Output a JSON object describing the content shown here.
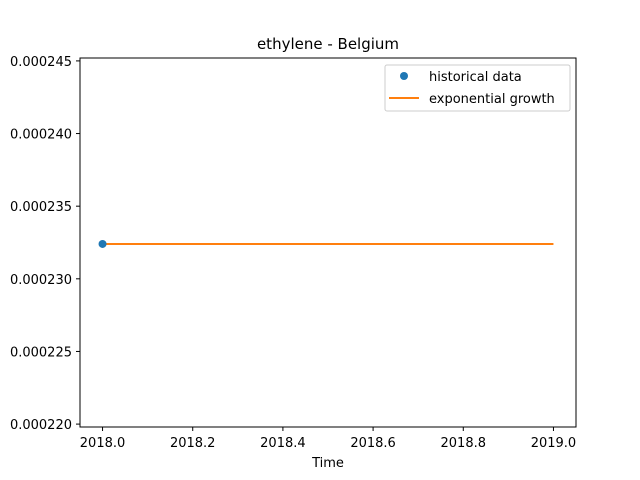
{
  "chart_data": {
    "type": "line",
    "title": "ethylene - Belgium",
    "xlabel": "Time",
    "ylabel": "",
    "xlim": [
      2017.95,
      2019.05
    ],
    "ylim": [
      0.0002198,
      0.0002452
    ],
    "x_ticks": [
      2018.0,
      2018.2,
      2018.4,
      2018.6,
      2018.8,
      2019.0
    ],
    "x_tick_labels": [
      "2018.0",
      "2018.2",
      "2018.4",
      "2018.6",
      "2018.8",
      "2019.0"
    ],
    "y_ticks": [
      0.00022,
      0.000225,
      0.00023,
      0.000235,
      0.00024,
      0.000245
    ],
    "y_tick_labels": [
      "0.000220",
      "0.000225",
      "0.000230",
      "0.000235",
      "0.000240",
      "0.000245"
    ],
    "grid": false,
    "legend_position": "top-right",
    "series": [
      {
        "name": "historical data",
        "kind": "scatter",
        "color": "#1f77b4",
        "points": [
          {
            "x": 2018.0,
            "y": 0.0002324
          }
        ]
      },
      {
        "name": "exponential growth",
        "kind": "line",
        "color": "#ff7f0e",
        "points": [
          {
            "x": 2018.0,
            "y": 0.0002324
          },
          {
            "x": 2019.0,
            "y": 0.0002324
          }
        ]
      }
    ]
  }
}
